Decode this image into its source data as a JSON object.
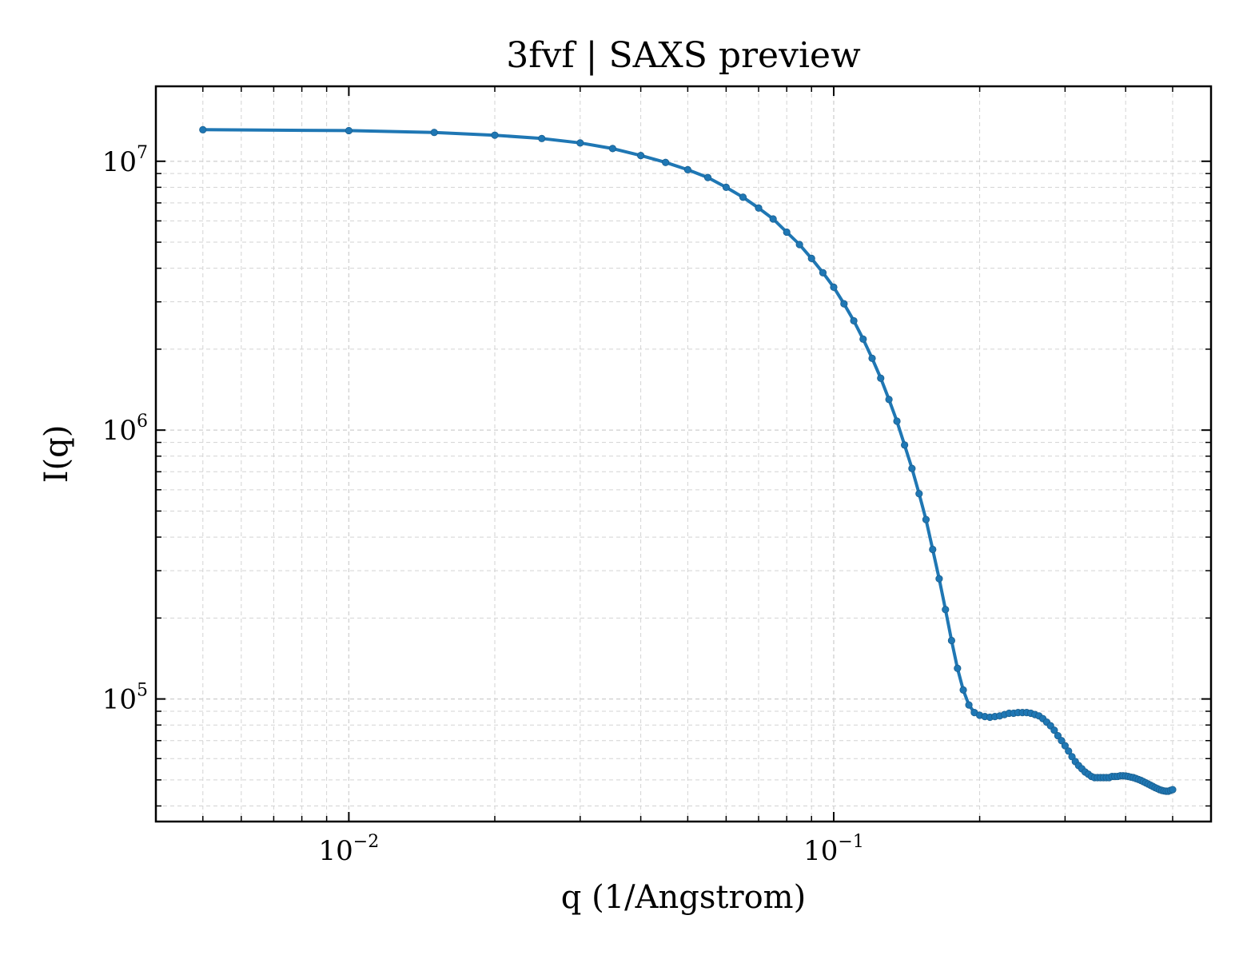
{
  "colors": {
    "series": "#1f77b4",
    "grid": "#d3d3d3",
    "axis": "#000000",
    "background": "#ffffff"
  },
  "chart_data": {
    "type": "line",
    "title": "3fvf | SAXS preview",
    "xlabel": "q (1/Angstrom)",
    "ylabel": "I(q)",
    "xscale": "log",
    "yscale": "log",
    "xlim": [
      0.004,
      0.6
    ],
    "ylim": [
      35000,
      19000000
    ],
    "grid": true,
    "legend": "none",
    "x_ticks": [
      {
        "value": 0.01,
        "base": "10",
        "exp": "−2"
      },
      {
        "value": 0.1,
        "base": "10",
        "exp": "−1"
      }
    ],
    "y_ticks": [
      {
        "value": 100000,
        "base": "10",
        "exp": "5"
      },
      {
        "value": 1000000,
        "base": "10",
        "exp": "6"
      },
      {
        "value": 10000000,
        "base": "10",
        "exp": "7"
      }
    ],
    "series": [
      {
        "x": [
          0.005,
          0.01,
          0.015,
          0.02,
          0.025,
          0.03,
          0.035,
          0.04,
          0.045,
          0.05,
          0.055,
          0.06,
          0.065,
          0.07,
          0.075,
          0.08,
          0.085,
          0.09,
          0.095,
          0.1,
          0.105,
          0.11,
          0.115,
          0.12,
          0.125,
          0.13,
          0.135,
          0.14,
          0.145,
          0.15,
          0.155,
          0.16,
          0.165,
          0.17,
          0.175,
          0.18,
          0.185,
          0.19,
          0.195,
          0.2,
          0.205,
          0.21,
          0.215,
          0.22,
          0.225,
          0.23,
          0.235,
          0.24,
          0.245,
          0.25,
          0.255,
          0.26,
          0.265,
          0.27,
          0.275,
          0.28,
          0.285,
          0.29,
          0.295,
          0.3,
          0.305,
          0.31,
          0.315,
          0.32,
          0.325,
          0.33,
          0.335,
          0.34,
          0.345,
          0.35,
          0.355,
          0.36,
          0.365,
          0.37,
          0.375,
          0.38,
          0.385,
          0.39,
          0.395,
          0.4,
          0.405,
          0.41,
          0.415,
          0.42,
          0.425,
          0.43,
          0.435,
          0.44,
          0.445,
          0.45,
          0.455,
          0.46,
          0.465,
          0.47,
          0.475,
          0.48,
          0.485,
          0.49,
          0.495,
          0.5
        ],
        "y": [
          13100000,
          13000000,
          12800000,
          12500000,
          12150000,
          11700000,
          11150000,
          10500000,
          9900000,
          9300000,
          8700000,
          8000000,
          7350000,
          6700000,
          6100000,
          5450000,
          4900000,
          4350000,
          3850000,
          3400000,
          2950000,
          2550000,
          2180000,
          1850000,
          1560000,
          1300000,
          1080000,
          880000,
          720000,
          580000,
          465000,
          360000,
          280000,
          215000,
          165000,
          130000,
          108000,
          95000,
          89000,
          87000,
          86000,
          85500,
          86000,
          86500,
          87500,
          88500,
          88500,
          89000,
          89000,
          89000,
          88500,
          87500,
          86500,
          84500,
          82000,
          79500,
          76500,
          73000,
          70000,
          67000,
          64000,
          61000,
          58500,
          56500,
          55000,
          53500,
          52500,
          51500,
          51000,
          51000,
          51000,
          51000,
          51000,
          51000,
          51500,
          51500,
          51500,
          51800,
          51800,
          51700,
          51500,
          51200,
          51000,
          50600,
          50200,
          49800,
          49300,
          48800,
          48300,
          47800,
          47300,
          46800,
          46400,
          46000,
          45700,
          45500,
          45400,
          45400,
          45700,
          46000
        ]
      }
    ]
  }
}
